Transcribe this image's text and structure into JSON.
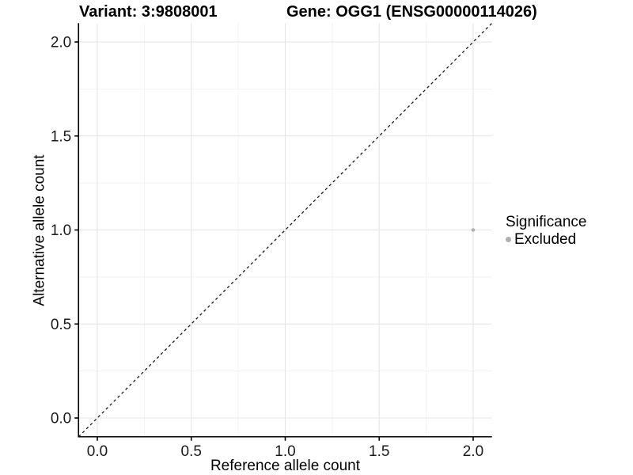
{
  "titles": {
    "variant": "Variant: 3:9808001",
    "gene": "Gene: OGG1 (ENSG00000114026)"
  },
  "axes": {
    "x": {
      "label": "Reference allele count",
      "tick_labels": [
        "0.0",
        "0.5",
        "1.0",
        "1.5",
        "2.0"
      ],
      "tick_values": [
        0,
        0.5,
        1,
        1.5,
        2
      ],
      "minor_tick_values": [
        0.25,
        0.75,
        1.25,
        1.75
      ],
      "range": [
        -0.1,
        2.1
      ]
    },
    "y": {
      "label": "Alternative allele count",
      "tick_labels": [
        "0.0",
        "0.5",
        "1.0",
        "1.5",
        "2.0"
      ],
      "tick_values": [
        0,
        0.5,
        1,
        1.5,
        2
      ],
      "minor_tick_values": [
        0.25,
        0.75,
        1.25,
        1.75
      ],
      "range": [
        -0.1,
        2.1
      ]
    }
  },
  "legend": {
    "title": "Significance",
    "items": [
      {
        "label": "Excluded",
        "marker": "circle-icon",
        "color": "#B0B0B0"
      }
    ]
  },
  "colors": {
    "background": "#FFFFFF",
    "grid_major": "#E4E4E4",
    "grid_minor": "#F2F2F2",
    "axis_line": "#000000",
    "tick_text": "#1A1A1A",
    "reference_line": "#1A1A1A",
    "point": "#B0B0B0"
  },
  "chart_data": {
    "type": "scatter",
    "title": "Variant: 3:9808001   Gene: OGG1 (ENSG00000114026)",
    "xlabel": "Reference allele count",
    "ylabel": "Alternative allele count",
    "xlim": [
      -0.1,
      2.1
    ],
    "ylim": [
      -0.1,
      2.1
    ],
    "x_ticks": [
      0,
      0.5,
      1,
      1.5,
      2
    ],
    "y_ticks": [
      0,
      0.5,
      1,
      1.5,
      2
    ],
    "grid": "on",
    "legend_position": "right",
    "series": [
      {
        "name": "Excluded",
        "color": "#B0B0B0",
        "points": [
          {
            "x": 2,
            "y": 1
          }
        ]
      }
    ],
    "reference_line": {
      "kind": "identity",
      "slope": 1,
      "intercept": 0,
      "style": "dashed",
      "color": "#1A1A1A"
    }
  }
}
